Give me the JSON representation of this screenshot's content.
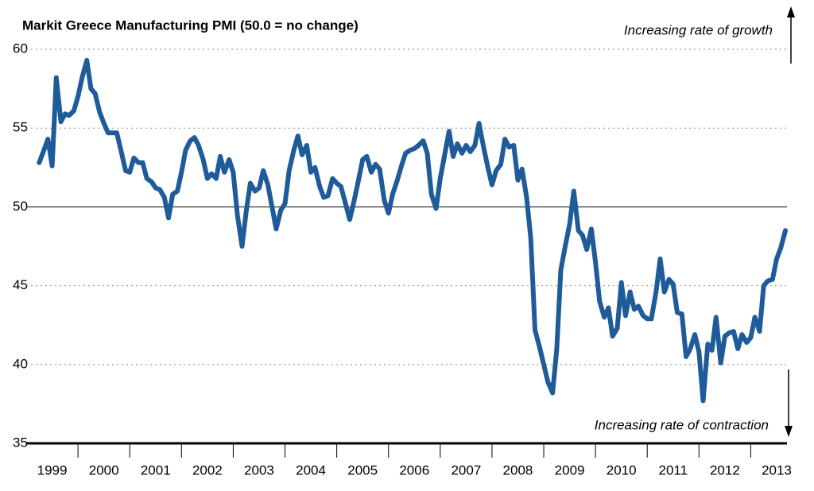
{
  "chart_data": {
    "type": "line",
    "title": "Markit Greece Manufacturing PMI (50.0 = no change)",
    "annotations": [
      "Increasing rate of growth",
      "Increasing rate of contraction"
    ],
    "x": [
      1999.25,
      1999.33,
      1999.42,
      1999.5,
      1999.58,
      1999.67,
      1999.75,
      1999.83,
      1999.92,
      2000.0,
      2000.08,
      2000.17,
      2000.25,
      2000.33,
      2000.42,
      2000.5,
      2000.58,
      2000.67,
      2000.75,
      2000.83,
      2000.92,
      2001.0,
      2001.08,
      2001.17,
      2001.25,
      2001.33,
      2001.42,
      2001.5,
      2001.58,
      2001.67,
      2001.75,
      2001.83,
      2001.92,
      2002.0,
      2002.08,
      2002.17,
      2002.25,
      2002.33,
      2002.42,
      2002.5,
      2002.58,
      2002.67,
      2002.75,
      2002.83,
      2002.92,
      2003.0,
      2003.08,
      2003.17,
      2003.25,
      2003.33,
      2003.42,
      2003.5,
      2003.58,
      2003.67,
      2003.75,
      2003.83,
      2003.92,
      2004.0,
      2004.08,
      2004.17,
      2004.25,
      2004.33,
      2004.42,
      2004.5,
      2004.58,
      2004.67,
      2004.75,
      2004.83,
      2004.92,
      2005.0,
      2005.08,
      2005.17,
      2005.25,
      2005.33,
      2005.42,
      2005.5,
      2005.58,
      2005.67,
      2005.75,
      2005.83,
      2005.92,
      2006.0,
      2006.08,
      2006.17,
      2006.25,
      2006.33,
      2006.42,
      2006.5,
      2006.58,
      2006.67,
      2006.75,
      2006.83,
      2006.92,
      2007.0,
      2007.08,
      2007.17,
      2007.25,
      2007.33,
      2007.42,
      2007.5,
      2007.58,
      2007.67,
      2007.75,
      2007.83,
      2007.92,
      2008.0,
      2008.08,
      2008.17,
      2008.25,
      2008.33,
      2008.42,
      2008.5,
      2008.58,
      2008.67,
      2008.75,
      2008.83,
      2008.92,
      2009.0,
      2009.08,
      2009.17,
      2009.25,
      2009.33,
      2009.42,
      2009.5,
      2009.58,
      2009.67,
      2009.75,
      2009.83,
      2009.92,
      2010.0,
      2010.08,
      2010.17,
      2010.25,
      2010.33,
      2010.42,
      2010.5,
      2010.58,
      2010.67,
      2010.75,
      2010.83,
      2010.92,
      2011.0,
      2011.08,
      2011.17,
      2011.25,
      2011.33,
      2011.42,
      2011.5,
      2011.58,
      2011.67,
      2011.75,
      2011.83,
      2011.92,
      2012.0,
      2012.08,
      2012.17,
      2012.25,
      2012.33,
      2012.42,
      2012.5,
      2012.58,
      2012.67,
      2012.75,
      2012.83,
      2012.92,
      2013.0,
      2013.08,
      2013.17,
      2013.25,
      2013.33,
      2013.42,
      2013.5,
      2013.58,
      2013.67
    ],
    "series": [
      {
        "name": "Markit Greece Manufacturing PMI",
        "color": "#1f5b99",
        "values": [
          52.8,
          53.5,
          54.3,
          52.6,
          58.2,
          55.4,
          55.9,
          55.8,
          56.1,
          57,
          58.2,
          59.3,
          57.5,
          57.2,
          56,
          55.3,
          54.7,
          54.7,
          54.7,
          53.6,
          52.3,
          52.2,
          53.1,
          52.8,
          52.8,
          51.8,
          51.6,
          51.2,
          51.1,
          50.6,
          49.3,
          50.8,
          51,
          52.2,
          53.6,
          54.2,
          54.4,
          53.9,
          53,
          51.8,
          52.1,
          51.8,
          53.2,
          52.2,
          53,
          52.2,
          49.5,
          47.5,
          49.7,
          51.5,
          51,
          51.2,
          52.3,
          51.4,
          50,
          48.6,
          49.8,
          50.2,
          52.3,
          53.6,
          54.5,
          53.3,
          53.9,
          52.2,
          52.5,
          51.3,
          50.6,
          50.7,
          51.8,
          51.5,
          51.3,
          50.2,
          49.2,
          50.3,
          51.7,
          53,
          53.2,
          52.2,
          52.7,
          52.4,
          50.4,
          49.6,
          50.8,
          51.7,
          52.6,
          53.4,
          53.6,
          53.7,
          53.9,
          54.2,
          53.4,
          50.8,
          49.9,
          51.8,
          53.2,
          54.8,
          53.2,
          54,
          53.4,
          53.9,
          53.5,
          53.9,
          55.3,
          53.9,
          52.5,
          51.4,
          52.3,
          52.7,
          54.3,
          53.8,
          53.9,
          51.7,
          52.4,
          50.6,
          48,
          42.2,
          41.1,
          40,
          38.9,
          38.2,
          40.9,
          46,
          47.6,
          48.9,
          51,
          48.5,
          48.2,
          47.3,
          48.6,
          46.5,
          44,
          43,
          43.6,
          41.8,
          42.3,
          45.2,
          43.1,
          44.6,
          43.5,
          43.7,
          43.1,
          42.9,
          42.9,
          44.6,
          46.7,
          44.6,
          45.4,
          45.1,
          43.3,
          43.2,
          40.5,
          41,
          41.9,
          40.8,
          37.7,
          41.3,
          40.9,
          43,
          40.1,
          41.8,
          42,
          42.1,
          41,
          41.9,
          41.4,
          41.7,
          43,
          42.1,
          45,
          45.3,
          45.4,
          46.7,
          47.4,
          48.5
        ]
      }
    ],
    "xlim": [
      1999,
      2013.7
    ],
    "xticks": [
      {
        "value": 1999.5,
        "label": "1999"
      },
      {
        "value": 2000.5,
        "label": "2000"
      },
      {
        "value": 2001.5,
        "label": "2001"
      },
      {
        "value": 2002.5,
        "label": "2002"
      },
      {
        "value": 2003.5,
        "label": "2003"
      },
      {
        "value": 2004.5,
        "label": "2004"
      },
      {
        "value": 2005.5,
        "label": "2005"
      },
      {
        "value": 2006.5,
        "label": "2006"
      },
      {
        "value": 2007.5,
        "label": "2007"
      },
      {
        "value": 2008.5,
        "label": "2008"
      },
      {
        "value": 2009.5,
        "label": "2009"
      },
      {
        "value": 2010.5,
        "label": "2010"
      },
      {
        "value": 2011.5,
        "label": "2011"
      },
      {
        "value": 2012.5,
        "label": "2012"
      },
      {
        "value": 2013.5,
        "label": "2013"
      }
    ],
    "ylim": [
      35,
      60
    ],
    "yticks": [
      35,
      40,
      45,
      50,
      55,
      60
    ],
    "grid": true
  }
}
